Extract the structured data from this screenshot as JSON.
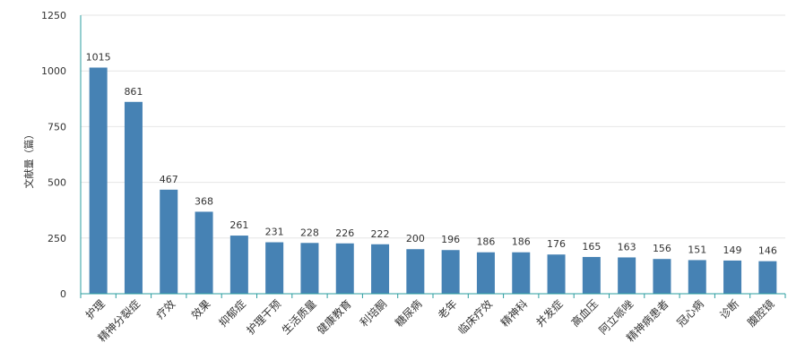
{
  "chart_data": {
    "type": "bar",
    "title": "",
    "xlabel": "",
    "ylabel": "文献量（篇）",
    "ylim": [
      0,
      1250
    ],
    "yticks": [
      0,
      250,
      500,
      750,
      1000,
      1250
    ],
    "grid": true,
    "legend": "none",
    "categories": [
      "护理",
      "精神分裂症",
      "疗效",
      "效果",
      "抑郁症",
      "护理干预",
      "生活质量",
      "健康教育",
      "利培酮",
      "糖尿病",
      "老年",
      "临床疗效",
      "精神科",
      "并发症",
      "高血压",
      "阿立哌唑",
      "精神病患者",
      "冠心病",
      "诊断",
      "腹腔镜"
    ],
    "values": [
      1015,
      861,
      467,
      368,
      261,
      231,
      228,
      226,
      222,
      200,
      196,
      186,
      186,
      176,
      165,
      163,
      156,
      151,
      149,
      146
    ],
    "colors": {
      "bar": "#4682b4",
      "axis": "#2a9d9f",
      "grid": "#e6e6e6",
      "text": "#333333"
    }
  }
}
